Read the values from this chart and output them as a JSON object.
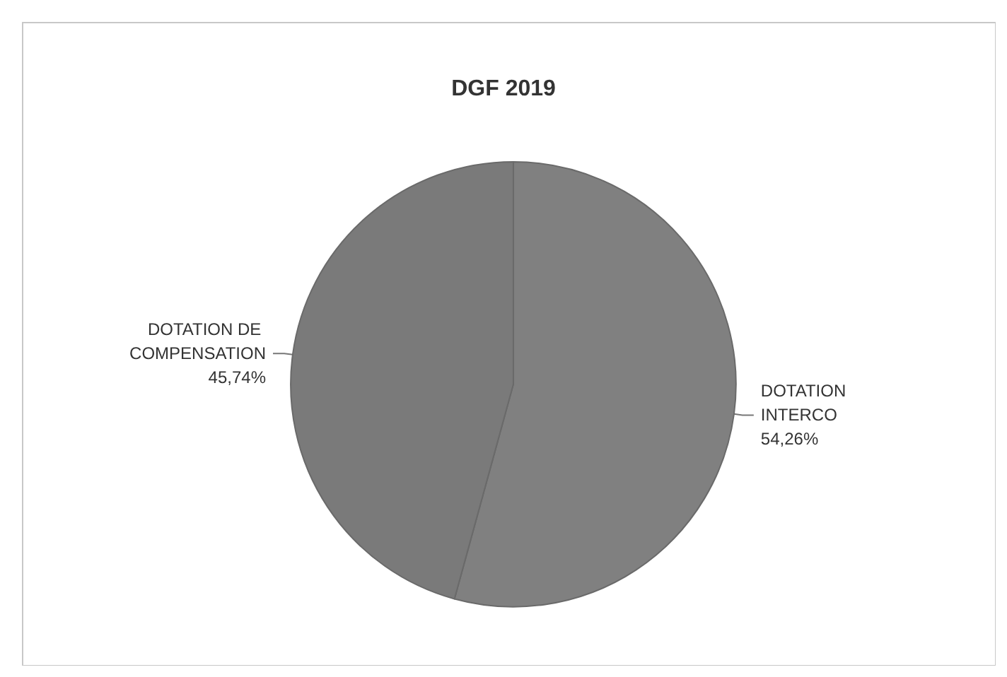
{
  "chart_data": {
    "type": "pie",
    "title": "DGF 2019",
    "categories": [
      "DOTATION INTERCO",
      "DOTATION DE COMPENSATION"
    ],
    "values": [
      54.26,
      45.74
    ],
    "value_labels": [
      "54,26%",
      "45,74%"
    ],
    "colors": [
      "#808080",
      "#7a7a7a"
    ],
    "legend": false
  }
}
